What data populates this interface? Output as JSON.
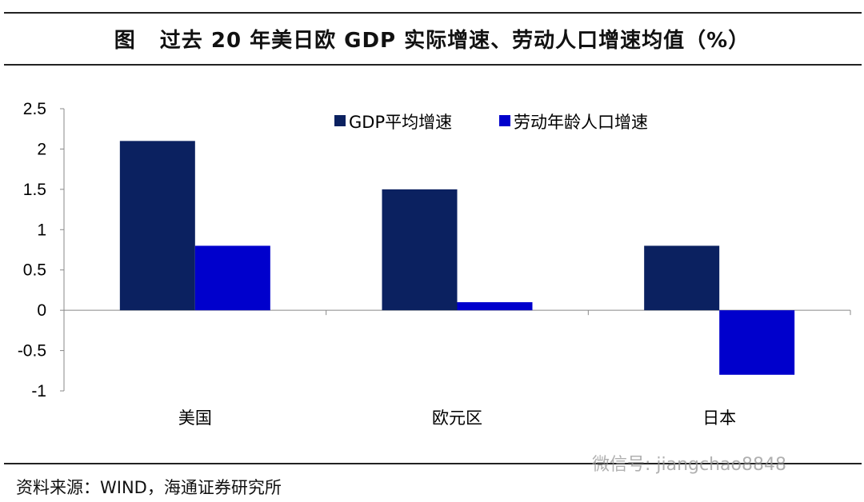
{
  "title": {
    "figure_label": "图",
    "text": "过去 20 年美日欧 GDP 实际增速、劳动人口增速均值（%）"
  },
  "source": "资料来源：WIND，海通证券研究所",
  "watermark": "微信号: jiangchao8848",
  "chart_data": {
    "type": "bar",
    "title": "",
    "xlabel": "",
    "ylabel": "",
    "categories": [
      "美国",
      "欧元区",
      "日本"
    ],
    "series": [
      {
        "name": "GDP平均增速",
        "values": [
          2.1,
          1.5,
          0.8
        ],
        "color": "#0b2160"
      },
      {
        "name": "劳动年龄人口增速",
        "values": [
          0.8,
          0.1,
          -0.8
        ],
        "color": "#0000cc"
      }
    ],
    "ylim": [
      -1,
      2.5
    ],
    "yticks": [
      "2.5",
      "2",
      "1.5",
      "1",
      "0.5",
      "0",
      "-0.5",
      "-1"
    ],
    "grid": false,
    "legend": "top-center"
  }
}
